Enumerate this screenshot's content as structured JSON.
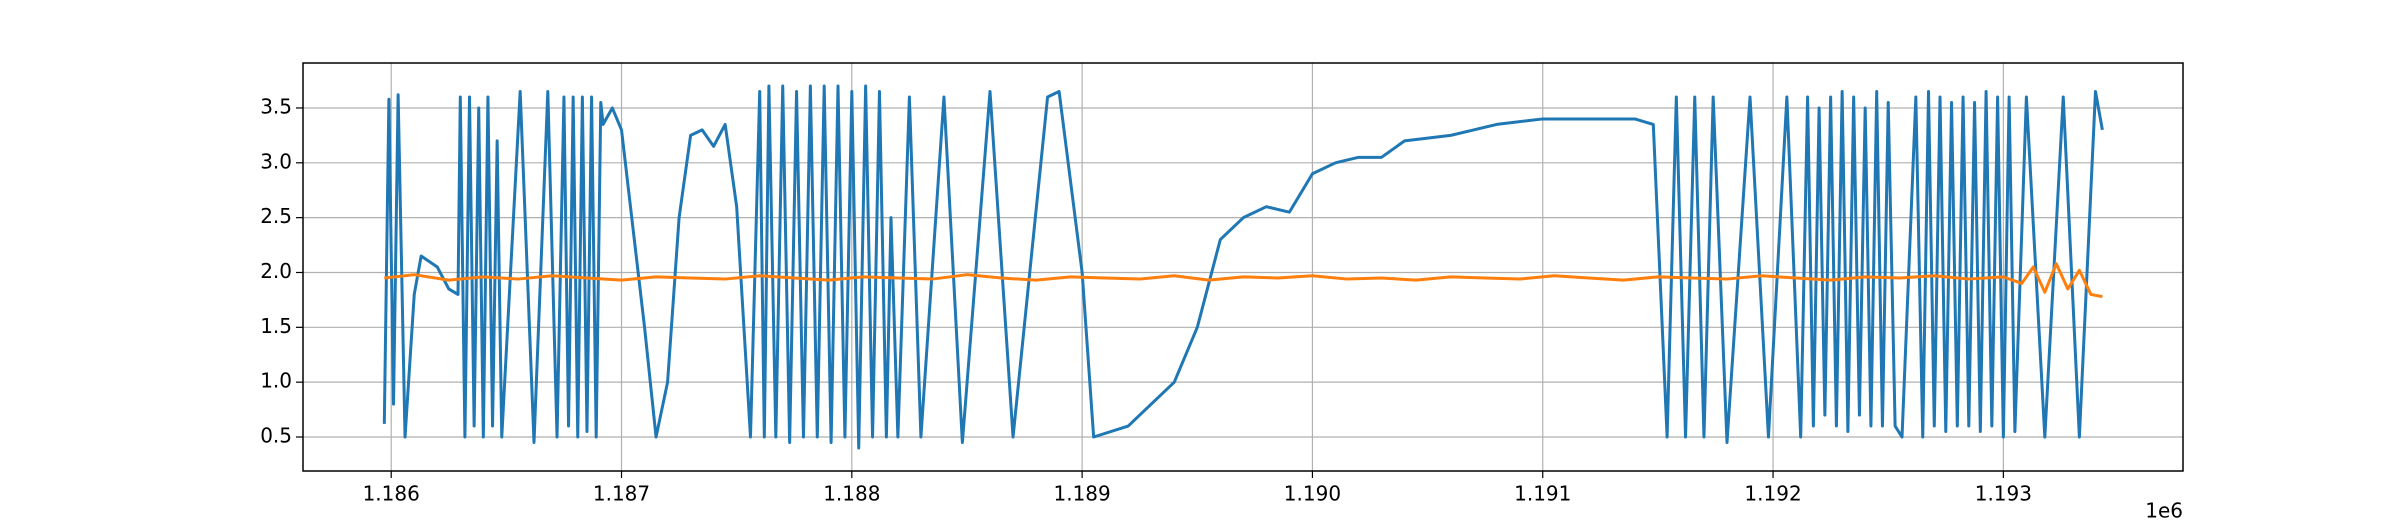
{
  "chart_data": {
    "type": "line",
    "annotations": [
      "1e6"
    ],
    "xlim": [
      1185617,
      1193780
    ],
    "ylim": [
      0.19,
      3.91
    ],
    "xticks": [
      {
        "value": 1186000,
        "label": "1.186"
      },
      {
        "value": 1187000,
        "label": "1.187"
      },
      {
        "value": 1188000,
        "label": "1.188"
      },
      {
        "value": 1189000,
        "label": "1.189"
      },
      {
        "value": 1190000,
        "label": "1.190"
      },
      {
        "value": 1191000,
        "label": "1.191"
      },
      {
        "value": 1192000,
        "label": "1.192"
      },
      {
        "value": 1193000,
        "label": "1.193"
      }
    ],
    "yticks": [
      0.5,
      {
        "value": 1,
        "label": "1.0"
      },
      1.5,
      {
        "value": 2,
        "label": "2.0"
      },
      2.5,
      {
        "value": 3,
        "label": "3.0"
      },
      3.5
    ],
    "grid": true,
    "series": [
      {
        "color": "#1f77b4",
        "x": [
          1185970,
          1185990,
          1186010,
          1186030,
          1186060,
          1186100,
          1186130,
          1186200,
          1186250,
          1186290,
          1186300,
          1186320,
          1186340,
          1186360,
          1186380,
          1186400,
          1186420,
          1186440,
          1186460,
          1186480,
          1186560,
          1186620,
          1186680,
          1186720,
          1186750,
          1186770,
          1186790,
          1186810,
          1186830,
          1186850,
          1186870,
          1186890,
          1186910,
          1186920,
          1186960,
          1187000,
          1187100,
          1187150,
          1187200,
          1187250,
          1187300,
          1187350,
          1187400,
          1187450,
          1187500,
          1187560,
          1187600,
          1187620,
          1187640,
          1187670,
          1187700,
          1187730,
          1187760,
          1187790,
          1187820,
          1187850,
          1187880,
          1187910,
          1187940,
          1187970,
          1188000,
          1188030,
          1188060,
          1188090,
          1188120,
          1188150,
          1188170,
          1188200,
          1188250,
          1188300,
          1188400,
          1188480,
          1188600,
          1188700,
          1188850,
          1188900,
          1189000,
          1189050,
          1189200,
          1189400,
          1189500,
          1189600,
          1189700,
          1189800,
          1189900,
          1190000,
          1190100,
          1190200,
          1190300,
          1190400,
          1190600,
          1190700,
          1190800,
          1191000,
          1191200,
          1191400,
          1191480,
          1191540,
          1191580,
          1191620,
          1191660,
          1191700,
          1191740,
          1191800,
          1191900,
          1191980,
          1192060,
          1192120,
          1192150,
          1192175,
          1192200,
          1192225,
          1192250,
          1192275,
          1192300,
          1192325,
          1192350,
          1192375,
          1192400,
          1192425,
          1192450,
          1192475,
          1192500,
          1192530,
          1192560,
          1192620,
          1192650,
          1192675,
          1192700,
          1192725,
          1192750,
          1192775,
          1192800,
          1192825,
          1192850,
          1192875,
          1192900,
          1192925,
          1192950,
          1192975,
          1193000,
          1193025,
          1193050,
          1193100,
          1193180,
          1193260,
          1193330,
          1193400,
          1193430
        ],
        "values": [
          0.62,
          3.58,
          0.8,
          3.62,
          0.5,
          1.8,
          2.15,
          2.05,
          1.85,
          1.8,
          3.6,
          0.5,
          3.6,
          0.6,
          3.5,
          0.5,
          3.6,
          0.6,
          3.2,
          0.5,
          3.65,
          0.45,
          3.65,
          0.5,
          3.6,
          0.6,
          3.6,
          0.5,
          3.6,
          0.55,
          3.6,
          0.5,
          3.55,
          3.35,
          3.5,
          3.3,
          1.5,
          0.5,
          1.0,
          2.5,
          3.25,
          3.3,
          3.15,
          3.35,
          2.6,
          0.5,
          3.65,
          0.5,
          3.7,
          0.5,
          3.7,
          0.45,
          3.65,
          0.5,
          3.7,
          0.5,
          3.7,
          0.45,
          3.7,
          0.5,
          3.65,
          0.4,
          3.7,
          0.5,
          3.65,
          0.5,
          2.5,
          0.5,
          3.6,
          0.5,
          3.6,
          0.45,
          3.65,
          0.5,
          3.6,
          3.65,
          2.0,
          0.5,
          0.6,
          1.0,
          1.5,
          2.3,
          2.5,
          2.6,
          2.55,
          2.9,
          3.0,
          3.05,
          3.05,
          3.2,
          3.25,
          3.3,
          3.35,
          3.4,
          3.4,
          3.4,
          3.35,
          0.5,
          3.6,
          0.5,
          3.6,
          0.5,
          3.6,
          0.45,
          3.6,
          0.5,
          3.6,
          0.5,
          3.6,
          0.6,
          3.5,
          0.7,
          3.6,
          0.6,
          3.65,
          0.55,
          3.6,
          0.7,
          3.5,
          0.6,
          3.65,
          0.6,
          3.55,
          0.6,
          0.5,
          3.6,
          0.5,
          3.65,
          0.6,
          3.6,
          0.55,
          3.55,
          0.6,
          3.6,
          0.6,
          3.55,
          0.55,
          3.65,
          0.6,
          3.6,
          0.5,
          3.6,
          0.55,
          3.6,
          0.5,
          3.6,
          0.5,
          3.65,
          3.3
        ]
      },
      {
        "color": "#ff7f0e",
        "x": [
          1185970,
          1186100,
          1186250,
          1186400,
          1186550,
          1186700,
          1186850,
          1187000,
          1187150,
          1187300,
          1187450,
          1187600,
          1187750,
          1187900,
          1188050,
          1188200,
          1188350,
          1188500,
          1188650,
          1188800,
          1188950,
          1189100,
          1189250,
          1189400,
          1189550,
          1189700,
          1189850,
          1190000,
          1190150,
          1190300,
          1190450,
          1190600,
          1190750,
          1190900,
          1191050,
          1191200,
          1191350,
          1191500,
          1191650,
          1191800,
          1191950,
          1192100,
          1192250,
          1192400,
          1192550,
          1192700,
          1192850,
          1193000,
          1193080,
          1193130,
          1193180,
          1193230,
          1193280,
          1193330,
          1193380,
          1193430
        ],
        "values": [
          1.95,
          1.98,
          1.93,
          1.96,
          1.94,
          1.97,
          1.95,
          1.93,
          1.96,
          1.95,
          1.94,
          1.97,
          1.95,
          1.93,
          1.96,
          1.95,
          1.94,
          1.98,
          1.95,
          1.93,
          1.96,
          1.95,
          1.94,
          1.97,
          1.93,
          1.96,
          1.95,
          1.97,
          1.94,
          1.95,
          1.93,
          1.96,
          1.95,
          1.94,
          1.97,
          1.95,
          1.93,
          1.96,
          1.95,
          1.94,
          1.97,
          1.95,
          1.93,
          1.96,
          1.95,
          1.97,
          1.94,
          1.96,
          1.9,
          2.05,
          1.82,
          2.08,
          1.85,
          2.02,
          1.8,
          1.78
        ]
      }
    ]
  }
}
